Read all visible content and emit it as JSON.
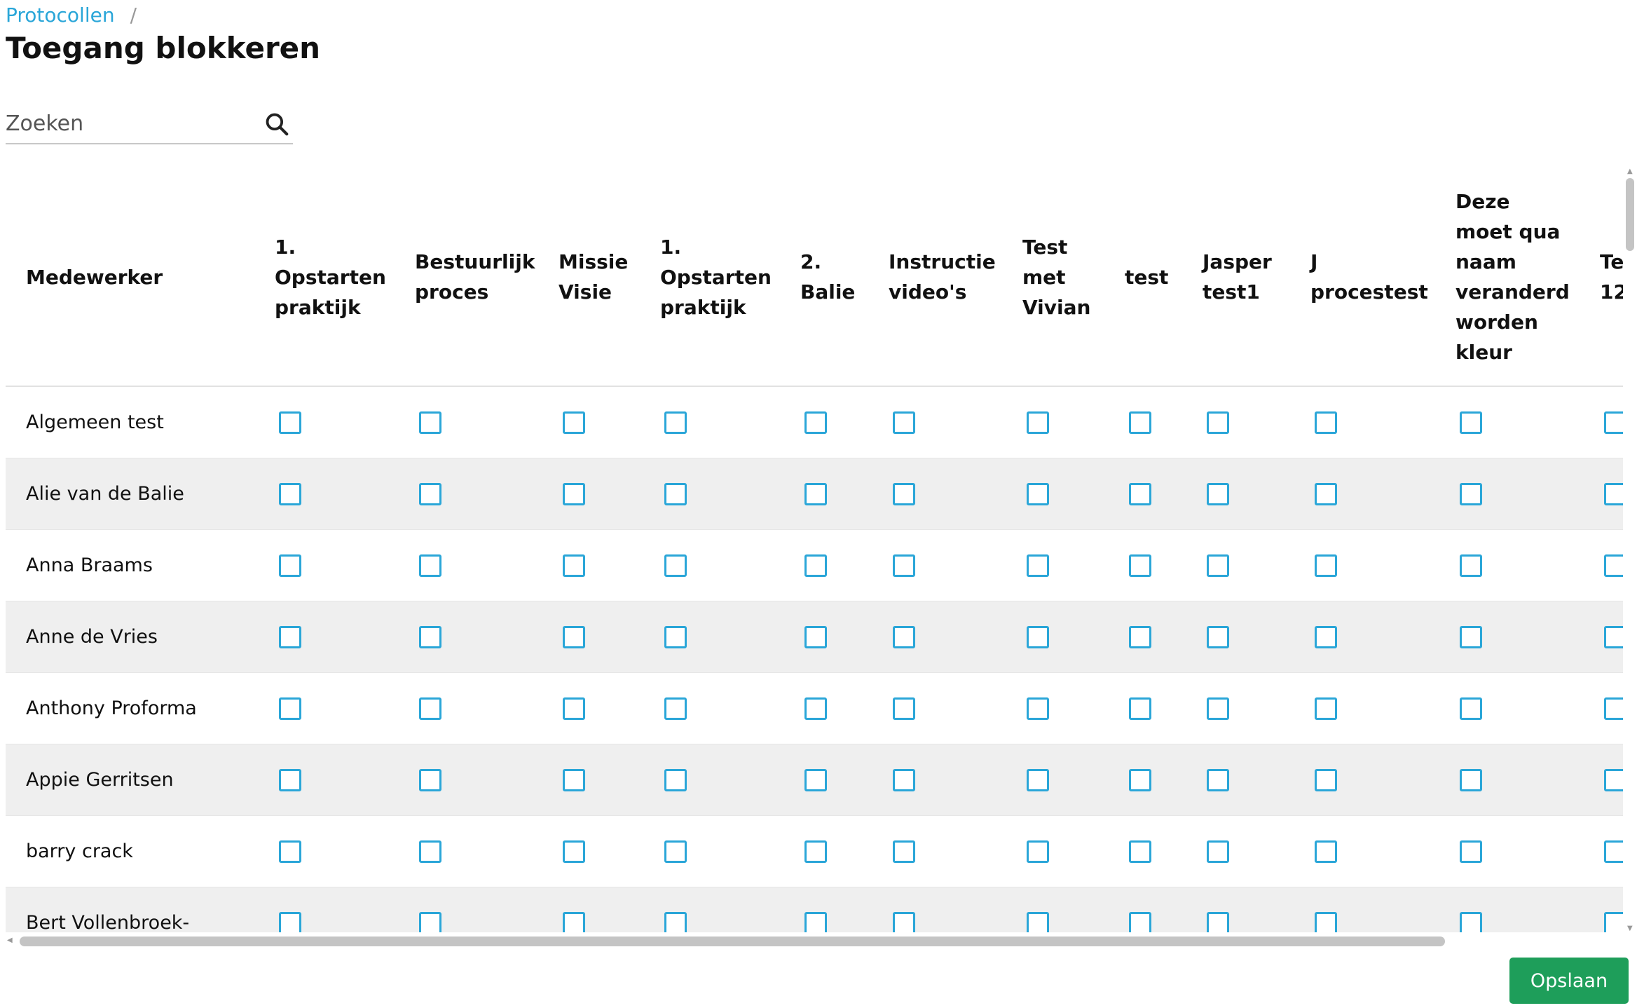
{
  "breadcrumb": {
    "link": "Protocollen",
    "separator": "/"
  },
  "page": {
    "title": "Toegang blokkeren"
  },
  "search": {
    "placeholder": "Zoeken",
    "value": ""
  },
  "table": {
    "name_header": "Medewerker",
    "columns": [
      "1.\nOpstarten\npraktijk",
      "Bestuurlijk\nproces",
      "Missie\nVisie",
      "1.\nOpstarten\npraktijk",
      "2.\nBalie",
      "Instructie\nvideo's",
      "Test\nmet\nVivian",
      "test",
      "Jasper\ntest1",
      "J\nprocestest",
      "Deze\nmoet qua\nnaam\nveranderd\nworden\nkleur",
      "Te\n12"
    ],
    "rows": [
      "Algemeen test",
      "Alie van de Balie",
      "Anna Braams",
      "Anne de Vries",
      "Anthony Proforma",
      "Appie Gerritsen",
      "barry crack",
      "Bert Vollenbroek-"
    ]
  },
  "actions": {
    "save_label": "Opslaan"
  },
  "colors": {
    "accent": "#2aa6d8",
    "save": "#1e9e5a"
  }
}
